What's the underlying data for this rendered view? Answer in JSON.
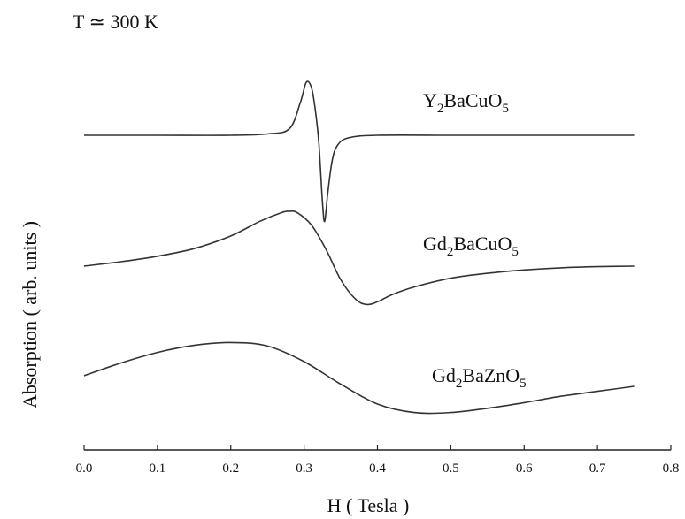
{
  "chart_data": {
    "type": "line",
    "title": "",
    "annotation": "T ≃ 300 K",
    "xlabel": "H ( Tesla )",
    "ylabel": "Absorption ( arb. units )",
    "xlim": [
      0.0,
      0.8
    ],
    "x_ticks": [
      "0.0",
      "0.1",
      "0.2",
      "0.3",
      "0.4",
      "0.5",
      "0.6",
      "0.7",
      "0.8"
    ],
    "y_ticks": [],
    "grid": false,
    "series": [
      {
        "name_parts": [
          "Y",
          "2",
          "BaCuO",
          "5"
        ],
        "x": [
          0.0,
          0.1,
          0.2,
          0.25,
          0.28,
          0.295,
          0.303,
          0.31,
          0.315,
          0.32,
          0.325,
          0.328,
          0.332,
          0.338,
          0.345,
          0.36,
          0.4,
          0.5,
          0.6,
          0.75
        ],
        "y": [
          0.0,
          0.0,
          0.0,
          0.01,
          0.05,
          0.25,
          0.4,
          0.36,
          0.2,
          -0.05,
          -0.5,
          -0.65,
          -0.45,
          -0.2,
          -0.08,
          -0.02,
          0.0,
          0.0,
          0.0,
          0.0
        ]
      },
      {
        "name_parts": [
          "Gd",
          "2",
          "BaCuO",
          "5"
        ],
        "x": [
          0.0,
          0.05,
          0.1,
          0.15,
          0.2,
          0.24,
          0.27,
          0.28,
          0.29,
          0.31,
          0.33,
          0.35,
          0.37,
          0.385,
          0.4,
          0.42,
          0.45,
          0.5,
          0.55,
          0.6,
          0.65,
          0.7,
          0.75
        ],
        "y": [
          0.0,
          0.08,
          0.18,
          0.32,
          0.55,
          0.82,
          0.98,
          1.0,
          0.98,
          0.75,
          0.3,
          -0.25,
          -0.6,
          -0.7,
          -0.65,
          -0.52,
          -0.38,
          -0.22,
          -0.13,
          -0.07,
          -0.03,
          -0.01,
          0.0
        ]
      },
      {
        "name_parts": [
          "Gd",
          "2",
          "BaZnO",
          "5"
        ],
        "x": [
          0.0,
          0.05,
          0.1,
          0.15,
          0.2,
          0.25,
          0.3,
          0.35,
          0.4,
          0.45,
          0.5,
          0.55,
          0.6,
          0.65,
          0.7,
          0.75
        ],
        "y": [
          0.0,
          0.18,
          0.33,
          0.43,
          0.47,
          0.42,
          0.2,
          -0.12,
          -0.4,
          -0.52,
          -0.52,
          -0.46,
          -0.38,
          -0.29,
          -0.22,
          -0.15
        ]
      }
    ]
  }
}
